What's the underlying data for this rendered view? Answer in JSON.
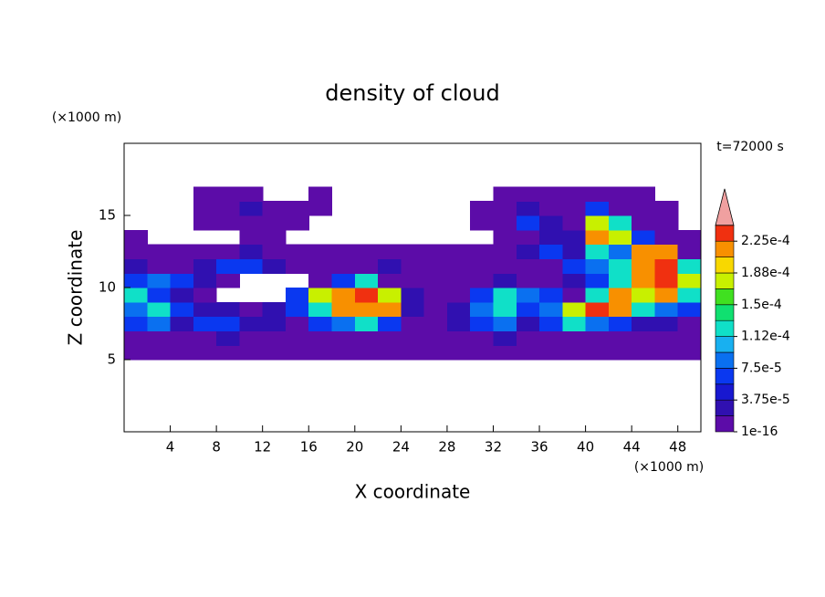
{
  "chart_data": {
    "type": "contour",
    "title": "density of cloud",
    "x_label": "X coordinate",
    "y_label": "Z coordinate",
    "x_unit": "(×1000 m)",
    "y_unit": "(×1000 m)",
    "annotation": "t=72000 s",
    "xlim": [
      0,
      50
    ],
    "ylim": [
      0,
      20
    ],
    "xticks": [
      4,
      8,
      12,
      16,
      20,
      24,
      28,
      32,
      36,
      40,
      44,
      48
    ],
    "yticks": [
      5,
      10,
      15
    ],
    "x": [
      1,
      3,
      5,
      7,
      9,
      11,
      13,
      15,
      17,
      19,
      21,
      23,
      25,
      27,
      29,
      31,
      33,
      35,
      37,
      39,
      41,
      43,
      45,
      47,
      49
    ],
    "y": [
      5.5,
      6.5,
      7.5,
      8.5,
      9.5,
      10.5,
      11.5,
      12.5,
      13.5,
      14.5,
      15.5,
      16.5
    ],
    "z": [
      [
        1e-05,
        1e-05,
        1e-05,
        1e-05,
        1e-05,
        1e-05,
        1e-05,
        1e-05,
        1e-05,
        1e-05,
        1e-05,
        1e-05,
        1e-05,
        1e-05,
        1e-05,
        1e-05,
        1e-05,
        1e-05,
        1e-05,
        1e-05,
        1e-05,
        1e-05,
        1e-05,
        1e-05,
        1e-05
      ],
      [
        1e-05,
        1e-05,
        1e-05,
        1e-05,
        3e-05,
        1e-05,
        1e-05,
        1e-05,
        1e-05,
        1e-05,
        1e-05,
        1e-05,
        1e-05,
        1e-05,
        1e-05,
        1e-05,
        3e-05,
        1e-05,
        1e-05,
        1e-05,
        1e-05,
        1e-05,
        1e-05,
        1e-05,
        1e-05
      ],
      [
        6e-05,
        9e-05,
        3e-05,
        6e-05,
        6e-05,
        3e-05,
        3e-05,
        1e-05,
        6e-05,
        9e-05,
        0.00013,
        6e-05,
        1e-05,
        1e-05,
        3e-05,
        6e-05,
        9e-05,
        3e-05,
        6e-05,
        0.00013,
        9e-05,
        6e-05,
        3e-05,
        3e-05,
        1e-05
      ],
      [
        9e-05,
        0.00013,
        6e-05,
        3e-05,
        3e-05,
        1e-05,
        3e-05,
        6e-05,
        0.00013,
        0.00021,
        0.00021,
        0.00021,
        3e-05,
        1e-05,
        3e-05,
        9e-05,
        0.00013,
        6e-05,
        9e-05,
        0.00017,
        0.000235,
        0.00021,
        0.00013,
        9e-05,
        6e-05
      ],
      [
        0.00013,
        6e-05,
        3e-05,
        1e-05,
        null,
        null,
        null,
        6e-05,
        0.00017,
        0.00021,
        0.000235,
        0.00017,
        3e-05,
        1e-05,
        1e-05,
        6e-05,
        0.00013,
        9e-05,
        6e-05,
        1e-05,
        0.00013,
        0.00021,
        0.00017,
        0.00021,
        0.00013
      ],
      [
        6e-05,
        9e-05,
        6e-05,
        3e-05,
        1e-05,
        null,
        null,
        null,
        1e-05,
        6e-05,
        0.00013,
        1e-05,
        1e-05,
        1e-05,
        1e-05,
        1e-05,
        3e-05,
        1e-05,
        1e-05,
        3e-05,
        6e-05,
        0.00013,
        0.00021,
        0.000235,
        0.00017
      ],
      [
        3e-05,
        1e-05,
        1e-05,
        3e-05,
        6e-05,
        6e-05,
        3e-05,
        1e-05,
        1e-05,
        1e-05,
        1e-05,
        3e-05,
        1e-05,
        1e-05,
        1e-05,
        1e-05,
        1e-05,
        1e-05,
        1e-05,
        6e-05,
        9e-05,
        0.00013,
        0.00021,
        0.000235,
        0.00013
      ],
      [
        1e-05,
        1e-05,
        1e-05,
        1e-05,
        1e-05,
        3e-05,
        1e-05,
        1e-05,
        1e-05,
        1e-05,
        1e-05,
        1e-05,
        1e-05,
        1e-05,
        1e-05,
        1e-05,
        1e-05,
        3e-05,
        6e-05,
        3e-05,
        0.00013,
        9e-05,
        0.00021,
        0.00021,
        1e-05
      ],
      [
        1e-05,
        null,
        null,
        null,
        null,
        1e-05,
        1e-05,
        null,
        null,
        null,
        null,
        null,
        null,
        null,
        null,
        null,
        1e-05,
        1e-05,
        3e-05,
        3e-05,
        0.00021,
        0.00017,
        6e-05,
        1e-05,
        1e-05
      ],
      [
        null,
        null,
        null,
        1e-05,
        1e-05,
        1e-05,
        1e-05,
        1e-05,
        null,
        null,
        null,
        null,
        null,
        null,
        null,
        1e-05,
        1e-05,
        6e-05,
        3e-05,
        1e-05,
        0.00017,
        0.00013,
        1e-05,
        1e-05,
        null
      ],
      [
        null,
        null,
        null,
        1e-05,
        1e-05,
        3e-05,
        1e-05,
        1e-05,
        1e-05,
        null,
        null,
        null,
        null,
        null,
        null,
        1e-05,
        1e-05,
        3e-05,
        1e-05,
        1e-05,
        6e-05,
        1e-05,
        1e-05,
        1e-05,
        null
      ],
      [
        null,
        null,
        null,
        1e-05,
        1e-05,
        1e-05,
        null,
        null,
        1e-05,
        null,
        null,
        null,
        null,
        null,
        null,
        null,
        1e-05,
        1e-05,
        1e-05,
        1e-05,
        1e-05,
        1e-05,
        1e-05,
        null,
        null
      ]
    ],
    "colorbar": {
      "levels": [
        1e-16,
        1.875e-05,
        3.75e-05,
        5.625e-05,
        7.5e-05,
        9.375e-05,
        0.0001125,
        0.00013125,
        0.00015,
        0.00016875,
        0.0001875,
        0.00020625,
        0.000225,
        0.00024375
      ],
      "colors": [
        "#5c0ca8",
        "#3010b0",
        "#1818d0",
        "#0a38f0",
        "#0a70f0",
        "#18b0f0",
        "#10e0c8",
        "#10e070",
        "#40e020",
        "#c8f000",
        "#f8d800",
        "#f89000",
        "#f03010"
      ],
      "extend_color": "#f0a0a0",
      "ticks": [
        {
          "value": 1e-16,
          "label": "1e-16"
        },
        {
          "value": 3.75e-05,
          "label": "3.75e-5"
        },
        {
          "value": 7.5e-05,
          "label": "7.5e-5"
        },
        {
          "value": 0.0001125,
          "label": "1.12e-4"
        },
        {
          "value": 0.00015,
          "label": "1.5e-4"
        },
        {
          "value": 0.0001875,
          "label": "1.88e-4"
        },
        {
          "value": 0.000225,
          "label": "2.25e-4"
        }
      ]
    }
  }
}
